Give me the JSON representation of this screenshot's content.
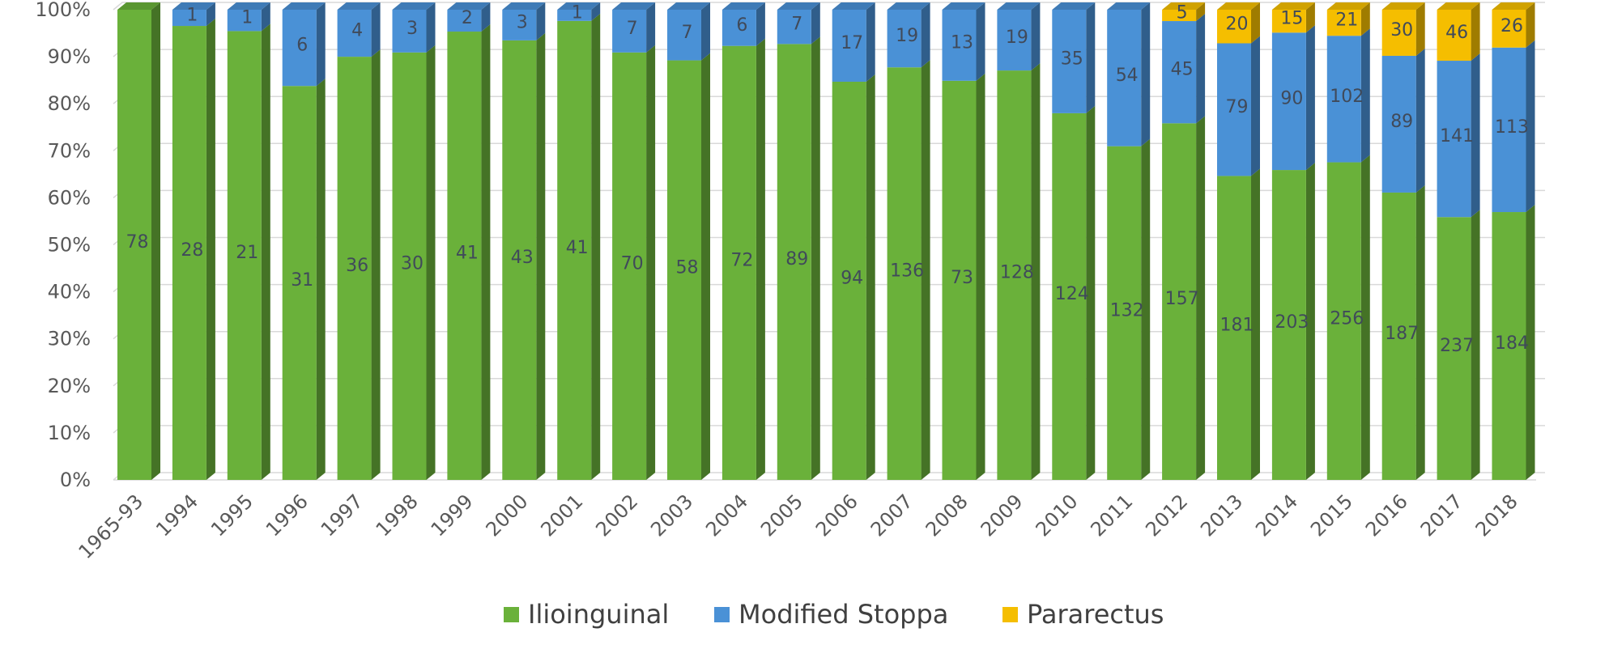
{
  "chart_data": {
    "type": "bar",
    "stacked": "percent",
    "categories": [
      "1965-93",
      "1994",
      "1995",
      "1996",
      "1997",
      "1998",
      "1999",
      "2000",
      "2001",
      "2002",
      "2003",
      "2004",
      "2005",
      "2006",
      "2007",
      "2008",
      "2009",
      "2010",
      "2011",
      "2012",
      "2013",
      "2014",
      "2015",
      "2016",
      "2017",
      "2018"
    ],
    "series": [
      {
        "name": "Ilioinguinal",
        "color": "#6ab13a",
        "values": [
          78,
          28,
          21,
          31,
          36,
          30,
          41,
          43,
          41,
          70,
          58,
          72,
          89,
          94,
          136,
          73,
          128,
          124,
          132,
          157,
          181,
          203,
          256,
          187,
          237,
          184
        ]
      },
      {
        "name": "Modified Stoppa",
        "color": "#4a91d6",
        "values": [
          null,
          1,
          1,
          6,
          4,
          3,
          2,
          3,
          1,
          7,
          7,
          6,
          7,
          17,
          19,
          13,
          19,
          35,
          54,
          45,
          79,
          90,
          102,
          89,
          141,
          113
        ]
      },
      {
        "name": "Pararectus",
        "color": "#f5be00",
        "values": [
          null,
          null,
          null,
          null,
          null,
          null,
          null,
          null,
          null,
          null,
          null,
          null,
          null,
          null,
          null,
          null,
          null,
          null,
          null,
          5,
          20,
          15,
          21,
          30,
          46,
          26
        ]
      }
    ],
    "y_ticks": [
      "0%",
      "10%",
      "20%",
      "30%",
      "40%",
      "50%",
      "60%",
      "70%",
      "80%",
      "90%",
      "100%"
    ],
    "ylim": [
      0,
      100
    ],
    "grid": true,
    "legend": "bottom",
    "title": "",
    "xlabel": "",
    "ylabel": ""
  }
}
